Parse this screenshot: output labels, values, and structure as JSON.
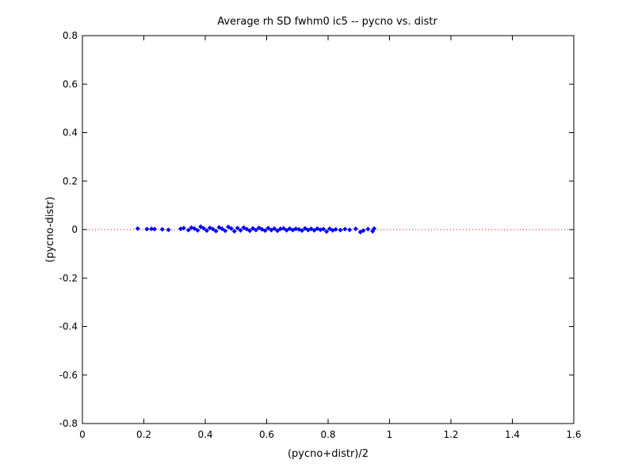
{
  "chart_data": {
    "type": "scatter",
    "title": "Average rh SD fwhm0 ic5 -- pycno vs. distr",
    "xlabel": "(pycno+distr)/2",
    "ylabel": "(pycno-distr)",
    "xlim": [
      0,
      1.6
    ],
    "ylim": [
      -0.8,
      0.8
    ],
    "xticks": [
      0,
      0.2,
      0.4,
      0.6,
      0.8,
      1,
      1.2,
      1.4,
      1.6
    ],
    "xtick_labels": [
      "0",
      "0.2",
      "0.4",
      "0.6",
      "0.8",
      "1",
      "1.2",
      "1.4",
      "1.6"
    ],
    "yticks": [
      -0.8,
      -0.6,
      -0.4,
      -0.2,
      0,
      0.2,
      0.4,
      0.6,
      0.8
    ],
    "ytick_labels": [
      "-0.8",
      "-0.6",
      "-0.4",
      "-0.2",
      "0",
      "0.2",
      "0.4",
      "0.6",
      "0.8"
    ],
    "grid": false,
    "reference_line": {
      "y": 0,
      "color": "#ff0000",
      "style": "dotted"
    },
    "marker_color": "#0000ff",
    "marker": "diamond",
    "series": [
      {
        "x": [
          0.18,
          0.21,
          0.225,
          0.235,
          0.26,
          0.28,
          0.32,
          0.33,
          0.345,
          0.355,
          0.365,
          0.375,
          0.385,
          0.395,
          0.405,
          0.415,
          0.425,
          0.435,
          0.445,
          0.455,
          0.465,
          0.475,
          0.485,
          0.495,
          0.505,
          0.515,
          0.525,
          0.535,
          0.545,
          0.555,
          0.565,
          0.575,
          0.585,
          0.595,
          0.605,
          0.615,
          0.625,
          0.635,
          0.645,
          0.655,
          0.665,
          0.675,
          0.685,
          0.695,
          0.705,
          0.715,
          0.725,
          0.735,
          0.745,
          0.755,
          0.765,
          0.775,
          0.785,
          0.795,
          0.805,
          0.815,
          0.825,
          0.84,
          0.855,
          0.87,
          0.89,
          0.905,
          0.915,
          0.93,
          0.945,
          0.95
        ],
        "y": [
          0.004,
          0.002,
          0.003,
          0.002,
          0.001,
          -0.001,
          0.003,
          0.006,
          -0.002,
          0.008,
          0.004,
          -0.003,
          0.012,
          0.005,
          -0.004,
          0.007,
          0.002,
          -0.006,
          0.009,
          0.003,
          -0.005,
          0.011,
          0.004,
          -0.007,
          0.006,
          -0.003,
          0.008,
          0.002,
          -0.005,
          0.005,
          -0.002,
          0.007,
          0.001,
          -0.004,
          0.006,
          -0.002,
          0.004,
          -0.005,
          0.003,
          0.005,
          -0.003,
          0.004,
          -0.002,
          0.003,
          0.001,
          -0.004,
          0.005,
          -0.002,
          0.003,
          -0.003,
          0.004,
          -0.001,
          0.002,
          -0.008,
          0.003,
          -0.003,
          0.001,
          -0.002,
          0.002,
          -0.001,
          0.003,
          -0.01,
          -0.004,
          0.002,
          -0.007,
          0.004
        ]
      }
    ]
  }
}
